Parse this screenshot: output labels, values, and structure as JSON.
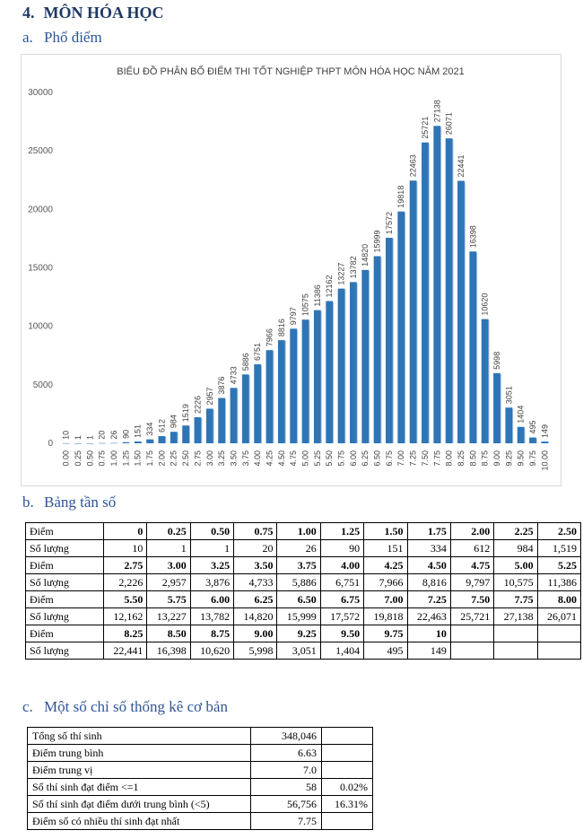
{
  "heading": {
    "number": "4.",
    "title": "MÔN HÓA HỌC"
  },
  "section_a": {
    "letter": "a.",
    "title": "Phổ điểm"
  },
  "section_b": {
    "letter": "b.",
    "title": "Bảng tần số"
  },
  "section_c": {
    "letter": "c.",
    "title": "Một số chỉ số thống kê cơ bản"
  },
  "chart_data": {
    "type": "bar",
    "title": "BIỂU ĐỒ PHÂN BỐ ĐIỂM THI TỐT NGHIỆP THPT MÔN HÓA HỌC NĂM 2021",
    "xlabel": "",
    "ylabel": "",
    "ylim": [
      0,
      30000
    ],
    "yticks": [
      0,
      5000,
      10000,
      15000,
      20000,
      25000,
      30000
    ],
    "categories": [
      "0.00",
      "0.25",
      "0.50",
      "0.75",
      "1.00",
      "1.25",
      "1.50",
      "1.75",
      "2.00",
      "2.25",
      "2.50",
      "2.75",
      "3.00",
      "3.25",
      "3.50",
      "3.75",
      "4.00",
      "4.25",
      "4.50",
      "4.75",
      "5.00",
      "5.25",
      "5.50",
      "5.75",
      "6.00",
      "6.25",
      "6.50",
      "6.75",
      "7.00",
      "7.25",
      "7.50",
      "7.75",
      "8.00",
      "8.25",
      "8.50",
      "8.75",
      "9.00",
      "9.25",
      "9.50",
      "9.75",
      "10.00"
    ],
    "values": [
      10,
      1,
      1,
      20,
      26,
      90,
      151,
      334,
      612,
      984,
      1519,
      2226,
      2957,
      3876,
      4733,
      5886,
      6751,
      7966,
      8816,
      9797,
      10575,
      11386,
      12162,
      13227,
      13782,
      14820,
      15999,
      17572,
      19818,
      22463,
      25721,
      27138,
      26071,
      22441,
      16398,
      10620,
      5998,
      3051,
      1404,
      495,
      149
    ],
    "bar_color": "#2e75b6"
  },
  "freq_table": {
    "score_label": "Điểm",
    "count_label": "Số lượng",
    "rows": [
      {
        "scores": [
          "0",
          "0.25",
          "0.50",
          "0.75",
          "1.00",
          "1.25",
          "1.50",
          "1.75",
          "2.00",
          "2.25",
          "2.50"
        ],
        "counts": [
          "10",
          "1",
          "1",
          "20",
          "26",
          "90",
          "151",
          "334",
          "612",
          "984",
          "1,519"
        ]
      },
      {
        "scores": [
          "2.75",
          "3.00",
          "3.25",
          "3.50",
          "3.75",
          "4.00",
          "4.25",
          "4.50",
          "4.75",
          "5.00",
          "5.25"
        ],
        "counts": [
          "2,226",
          "2,957",
          "3,876",
          "4,733",
          "5,886",
          "6,751",
          "7,966",
          "8,816",
          "9,797",
          "10,575",
          "11,386"
        ]
      },
      {
        "scores": [
          "5.50",
          "5.75",
          "6.00",
          "6.25",
          "6.50",
          "6.75",
          "7.00",
          "7.25",
          "7.50",
          "7.75",
          "8.00"
        ],
        "counts": [
          "12,162",
          "13,227",
          "13,782",
          "14,820",
          "15,999",
          "17,572",
          "19,818",
          "22,463",
          "25,721",
          "27,138",
          "26,071"
        ]
      },
      {
        "scores": [
          "8.25",
          "8.50",
          "8.75",
          "9.00",
          "9.25",
          "9.50",
          "9.75",
          "10",
          "",
          "",
          ""
        ],
        "counts": [
          "22,441",
          "16,398",
          "10,620",
          "5,998",
          "3,051",
          "1,404",
          "495",
          "149",
          "",
          "",
          ""
        ]
      }
    ]
  },
  "stats": [
    {
      "label": "Tổng số thí sinh",
      "value": "348,046",
      "pct": ""
    },
    {
      "label": "Điểm trung bình",
      "value": "6.63",
      "pct": ""
    },
    {
      "label": "Điểm trung vị",
      "value": "7.0",
      "pct": ""
    },
    {
      "label": "Số thí sinh đạt điểm <=1",
      "value": "58",
      "pct": "0.02%"
    },
    {
      "label": "Số thí sinh đạt điểm dưới trung bình (<5)",
      "value": "56,756",
      "pct": "16.31%"
    },
    {
      "label": "Điểm số có nhiều thí sinh đạt nhất",
      "value": "7.75",
      "pct": ""
    }
  ]
}
